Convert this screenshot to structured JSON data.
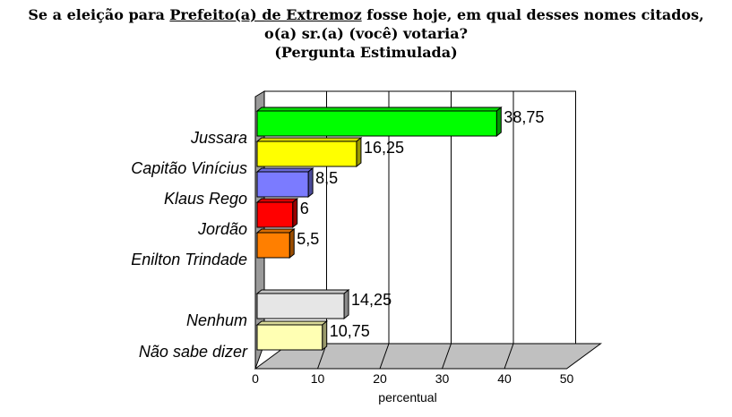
{
  "title": {
    "line1_pre": "Se a eleição para ",
    "line1_underlined": "Prefeito(a) de Extremoz",
    "line1_post": " fosse hoje, em qual desses nomes citados,",
    "line2": "o(a) sr.(a) (você) votaria?",
    "line3": "(Pergunta Estimulada)"
  },
  "chart_data": {
    "type": "bar",
    "orientation": "horizontal",
    "title": "Se a eleição para Prefeito(a) de Extremoz fosse hoje, em qual desses nomes citados, o(a) sr.(a) (você) votaria? (Pergunta Estimulada)",
    "xlabel": "percentual",
    "ylabel": "",
    "xlim": [
      0,
      50
    ],
    "xticks": [
      0,
      10,
      20,
      30,
      40,
      50
    ],
    "grid": true,
    "categories": [
      "Jussara",
      "Capitão Vinícius",
      "Klaus Rego",
      "Jordão",
      "Enilton Trindade",
      "Nenhum",
      "Não sabe dizer"
    ],
    "values": [
      38.75,
      16.25,
      8.5,
      6,
      5.5,
      14.25,
      10.75
    ],
    "value_labels": [
      "38,75",
      "16,25",
      "8,5",
      "6",
      "5,5",
      "14,25",
      "10,75"
    ],
    "colors": [
      "#00ff00",
      "#ffff00",
      "#7b7bff",
      "#ff0000",
      "#ff7f00",
      "#e6e6e6",
      "#ffffb3"
    ]
  }
}
